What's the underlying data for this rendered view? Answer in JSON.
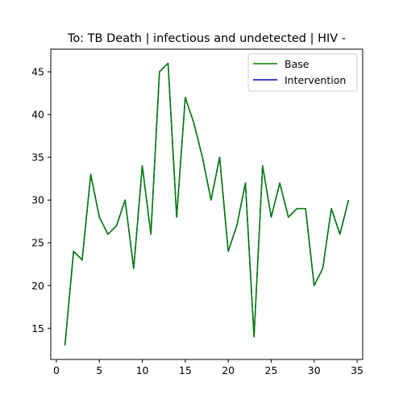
{
  "chart_data": {
    "type": "line",
    "title": "To: TB Death | infectious and undetected | HIV -",
    "xlabel": "",
    "ylabel": "",
    "xlim": [
      -0.65,
      35.65
    ],
    "ylim": [
      11.35,
      47.65
    ],
    "xticks": [
      0,
      5,
      10,
      15,
      20,
      25,
      30,
      35
    ],
    "yticks": [
      15,
      20,
      25,
      30,
      35,
      40,
      45
    ],
    "grid": false,
    "legend_position": "top-right",
    "x": [
      1,
      2,
      3,
      4,
      5,
      6,
      7,
      8,
      9,
      10,
      11,
      12,
      13,
      14,
      15,
      16,
      17,
      18,
      19,
      20,
      21,
      22,
      23,
      24,
      25,
      26,
      27,
      28,
      29,
      30,
      31,
      32,
      33,
      34
    ],
    "series": [
      {
        "name": "Base",
        "color": "#008000",
        "values": [
          13,
          24,
          23,
          33,
          28,
          26,
          27,
          30,
          22,
          34,
          26,
          45,
          46,
          28,
          42,
          39,
          35,
          30,
          35,
          24,
          27,
          32,
          14,
          34,
          28,
          32,
          28,
          29,
          29,
          20,
          22,
          29,
          26,
          30
        ]
      },
      {
        "name": "Intervention",
        "color": "#0000cc",
        "values": [
          13,
          24,
          23,
          33,
          28,
          26,
          27,
          30,
          22,
          34,
          26,
          45,
          46,
          28,
          42,
          39,
          35,
          30,
          35,
          24,
          27,
          32,
          14,
          34,
          28,
          32,
          28,
          29,
          29,
          20,
          22,
          29,
          26,
          30
        ]
      }
    ]
  }
}
